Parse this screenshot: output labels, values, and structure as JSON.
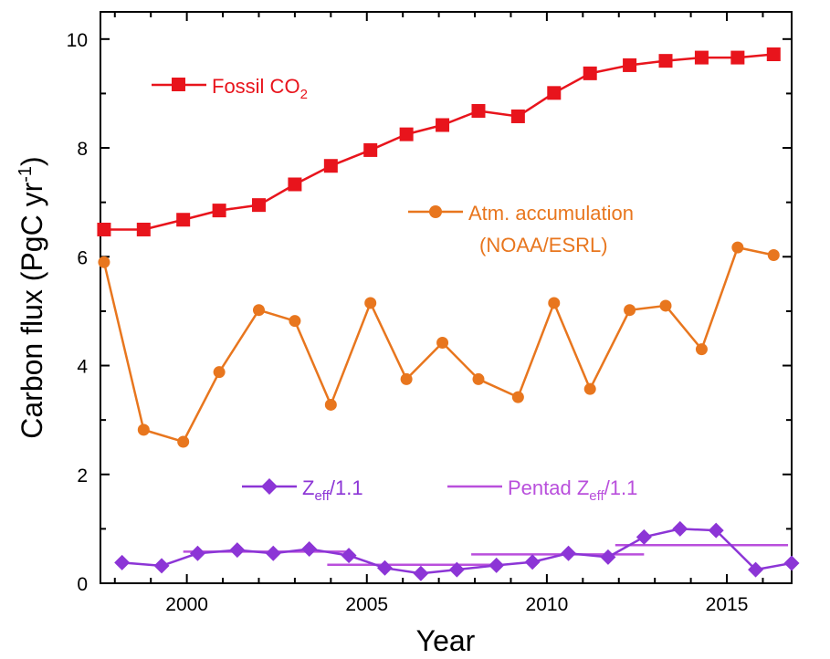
{
  "chart_data": {
    "type": "line",
    "xlabel": "Year",
    "ylabel_main": "Carbon flux (PgC yr",
    "ylabel_sup": "-1",
    "ylabel_close": ")",
    "xlim": [
      1997.6,
      2016.8
    ],
    "ylim": [
      0,
      10.5
    ],
    "xticks": [
      2000,
      2005,
      2010,
      2015
    ],
    "yticks": [
      0,
      2,
      4,
      6,
      8,
      10
    ],
    "grid": false,
    "legend_placement": "inline",
    "series": [
      {
        "name_main": "Fossil CO",
        "name_sub": "2",
        "color": "#e8141c",
        "marker": "square",
        "x": [
          1997.7,
          1998.8,
          1999.9,
          2000.9,
          2002.0,
          2003.0,
          2004.0,
          2005.1,
          2006.1,
          2007.1,
          2008.1,
          2009.2,
          2010.2,
          2011.2,
          2012.3,
          2013.3,
          2014.3,
          2015.3,
          2016.3
        ],
        "y": [
          6.5,
          6.5,
          6.68,
          6.85,
          6.95,
          7.33,
          7.67,
          7.96,
          8.25,
          8.42,
          8.68,
          8.58,
          9.01,
          9.37,
          9.52,
          9.6,
          9.66,
          9.66,
          9.72
        ]
      },
      {
        "name_line1": "Atm. accumulation",
        "name_line2": "(NOAA/ESRL)",
        "color": "#e8761e",
        "marker": "circle",
        "x": [
          1997.7,
          1998.8,
          1999.9,
          2000.9,
          2002.0,
          2003.0,
          2004.0,
          2005.1,
          2006.1,
          2007.1,
          2008.1,
          2009.2,
          2010.2,
          2011.2,
          2012.3,
          2013.3,
          2014.3,
          2015.3,
          2016.3
        ],
        "y": [
          5.9,
          2.82,
          2.6,
          3.88,
          5.02,
          4.82,
          3.28,
          5.15,
          3.75,
          4.42,
          3.75,
          3.42,
          5.15,
          3.57,
          5.02,
          5.1,
          4.3,
          6.17,
          6.03
        ]
      },
      {
        "name_main": "Z",
        "name_sub": "eff",
        "name_tail": "/1.1",
        "color": "#8c35d6",
        "marker": "diamond",
        "x": [
          1998.2,
          1999.3,
          2000.3,
          2001.4,
          2002.4,
          2003.4,
          2004.5,
          2005.5,
          2006.5,
          2007.5,
          2008.6,
          2009.6,
          2010.6,
          2011.7,
          2012.7,
          2013.7,
          2014.7,
          2015.8,
          2016.8
        ],
        "y": [
          0.38,
          0.32,
          0.55,
          0.61,
          0.55,
          0.63,
          0.51,
          0.28,
          0.18,
          0.25,
          0.33,
          0.39,
          0.55,
          0.48,
          0.85,
          1.0,
          0.97,
          0.25,
          0.37
        ]
      }
    ],
    "pentad": {
      "name_prefix": "Pentad Z",
      "name_sub": "eff",
      "name_tail": "/1.1",
      "color": "#b94fdc",
      "segments": [
        {
          "x0": 1999.9,
          "x1": 2004.5,
          "y": 0.58
        },
        {
          "x0": 2003.9,
          "x1": 2008.6,
          "y": 0.34
        },
        {
          "x0": 2007.9,
          "x1": 2012.7,
          "y": 0.53
        },
        {
          "x0": 2011.9,
          "x1": 2016.7,
          "y": 0.7
        }
      ]
    }
  }
}
